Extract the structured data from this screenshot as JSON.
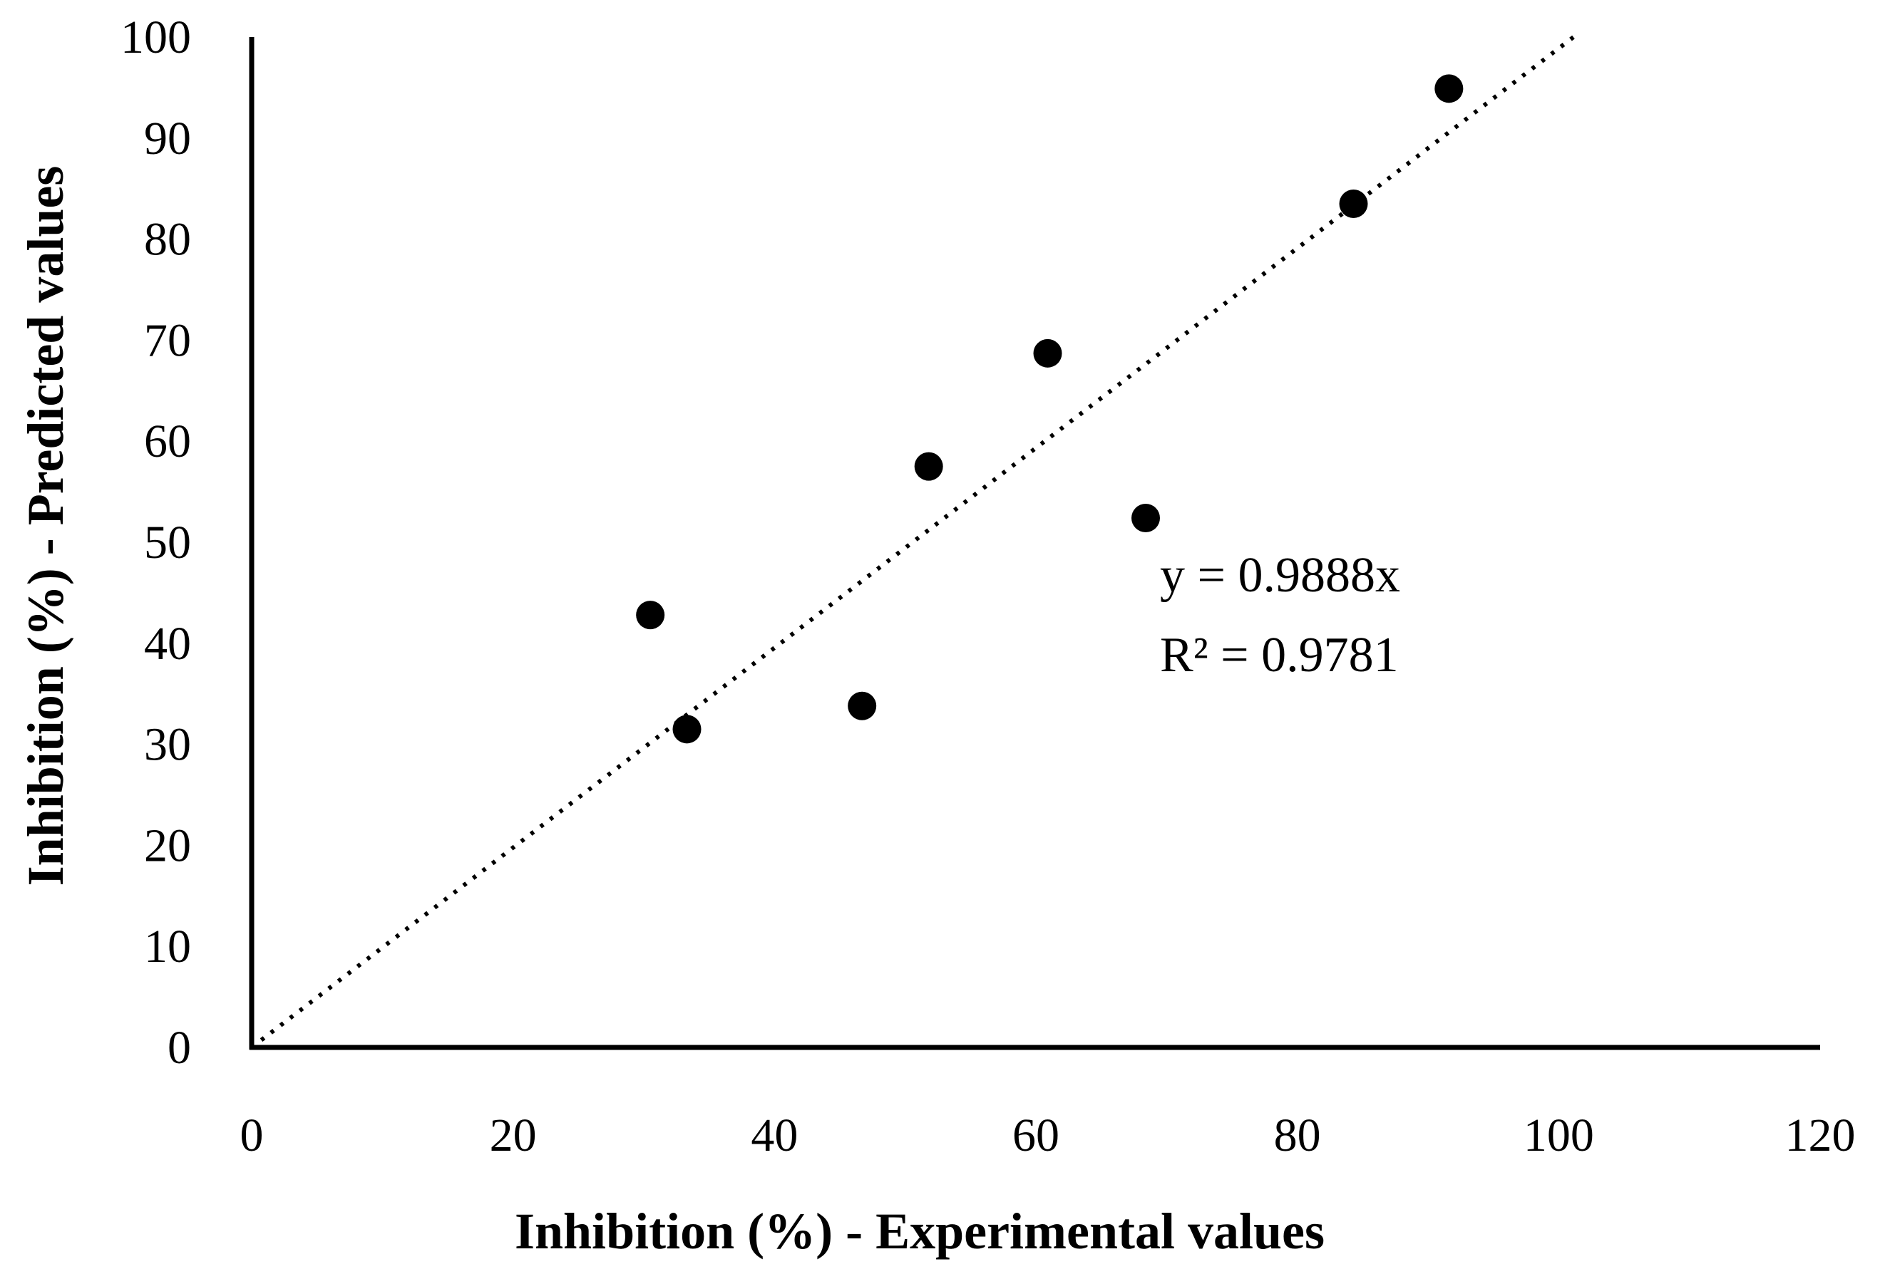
{
  "chart_data": {
    "type": "scatter",
    "title": "",
    "xlabel": "Inhibition (%) - Experimental values",
    "ylabel": "Inhibition (%) - Predicted values",
    "xlim": [
      0,
      120
    ],
    "ylim": [
      0,
      100
    ],
    "x_ticks": [
      0,
      20,
      40,
      60,
      80,
      100,
      120
    ],
    "y_ticks": [
      0,
      10,
      20,
      30,
      40,
      50,
      60,
      70,
      80,
      90,
      100
    ],
    "grid": false,
    "series": [
      {
        "name": "data",
        "color": "#000000",
        "points": [
          {
            "x": 30.5,
            "y": 42.8
          },
          {
            "x": 33.3,
            "y": 31.5
          },
          {
            "x": 46.7,
            "y": 33.8
          },
          {
            "x": 51.8,
            "y": 57.5
          },
          {
            "x": 60.9,
            "y": 68.7
          },
          {
            "x": 68.4,
            "y": 52.4
          },
          {
            "x": 84.3,
            "y": 83.5
          },
          {
            "x": 91.6,
            "y": 94.9
          }
        ]
      }
    ],
    "trendline": {
      "slope": 0.9888,
      "intercept": 0,
      "x_range": [
        0,
        101.2
      ],
      "style": "dotted",
      "equation_label": "y = 0.9888x",
      "r2_label": "R² = 0.9781"
    }
  }
}
